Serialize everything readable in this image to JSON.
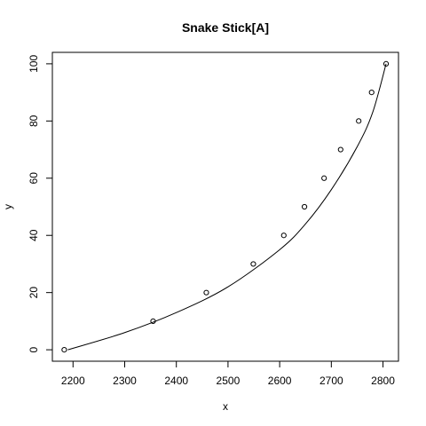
{
  "chart_data": {
    "type": "scatter",
    "title": "Snake Stick[A]",
    "xlabel": "x",
    "ylabel": "y",
    "xlim": [
      2160,
      2830
    ],
    "ylim": [
      -4,
      104
    ],
    "xticks": [
      "2200",
      "2300",
      "2400",
      "2500",
      "2600",
      "2700",
      "2800"
    ],
    "yticks": [
      "0",
      "20",
      "40",
      "60",
      "80",
      "100"
    ],
    "grid": false,
    "legend": "none",
    "points": [
      {
        "x": 2183,
        "y": 0
      },
      {
        "x": 2355,
        "y": 10
      },
      {
        "x": 2458,
        "y": 20
      },
      {
        "x": 2549,
        "y": 30
      },
      {
        "x": 2608,
        "y": 40
      },
      {
        "x": 2648,
        "y": 50
      },
      {
        "x": 2686,
        "y": 60
      },
      {
        "x": 2718,
        "y": 70
      },
      {
        "x": 2753,
        "y": 80
      },
      {
        "x": 2778,
        "y": 90
      },
      {
        "x": 2806,
        "y": 100
      }
    ],
    "fit_curve": [
      {
        "x": 2190,
        "y": 0
      },
      {
        "x": 2300,
        "y": 6
      },
      {
        "x": 2400,
        "y": 13
      },
      {
        "x": 2500,
        "y": 22
      },
      {
        "x": 2600,
        "y": 35
      },
      {
        "x": 2650,
        "y": 44
      },
      {
        "x": 2700,
        "y": 56
      },
      {
        "x": 2750,
        "y": 71
      },
      {
        "x": 2780,
        "y": 83
      },
      {
        "x": 2806,
        "y": 100
      }
    ]
  }
}
